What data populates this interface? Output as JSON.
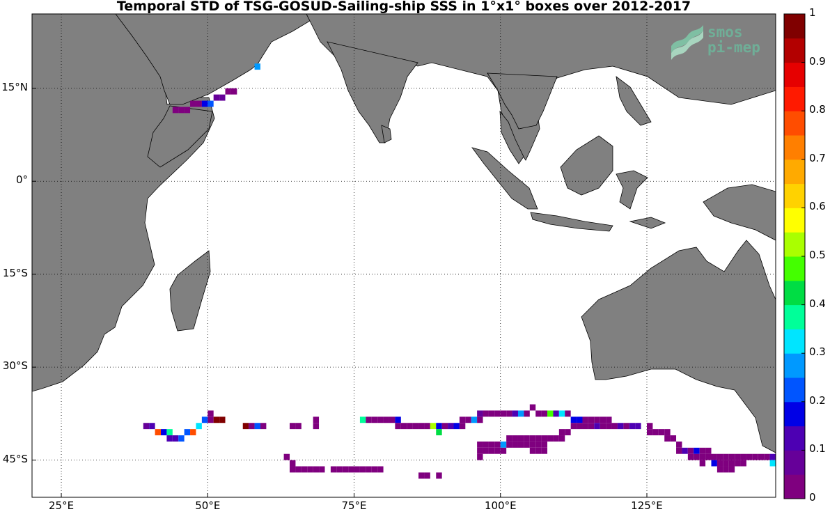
{
  "title": "Temporal STD of TSG-GOSUD-Sailing-ship SSS in 1°x1° boxes over 2012-2017",
  "logo": {
    "line1": "smos",
    "line2": "pi-mep"
  },
  "colors": {
    "land": "#808080",
    "ocean": "#ffffff",
    "grid": "#000000"
  },
  "map_extent": {
    "lon": [
      20,
      147
    ],
    "lat": [
      -51,
      27
    ]
  },
  "lat_ticks": [
    {
      "value": 15,
      "label": "15°N"
    },
    {
      "value": 0,
      "label": "0°"
    },
    {
      "value": -15,
      "label": "15°S"
    },
    {
      "value": -30,
      "label": "30°S"
    },
    {
      "value": -45,
      "label": "45°S"
    }
  ],
  "lon_ticks": [
    {
      "value": 25,
      "label": "25°E"
    },
    {
      "value": 50,
      "label": "50°E"
    },
    {
      "value": 75,
      "label": "75°E"
    },
    {
      "value": 100,
      "label": "100°E"
    },
    {
      "value": 125,
      "label": "125°E"
    }
  ],
  "colorbar": {
    "range": [
      0,
      1
    ],
    "tick_labels": [
      "0",
      "0.1",
      "0.2",
      "0.3",
      "0.4",
      "0.5",
      "0.6",
      "0.7",
      "0.8",
      "0.9",
      "1"
    ],
    "colors": [
      "#7f007f",
      "#660099",
      "#4d00b3",
      "#0000e6",
      "#0055ff",
      "#0099ff",
      "#00e5ff",
      "#00ff99",
      "#00dd44",
      "#44ff00",
      "#aaff00",
      "#ffff00",
      "#ffd200",
      "#ffaa00",
      "#ff7f00",
      "#ff4d00",
      "#ff1a00",
      "#e60000",
      "#b30000",
      "#800000"
    ]
  },
  "chart_data": {
    "type": "heatmap",
    "title": "Temporal STD of TSG-GOSUD-Sailing-ship SSS in 1°x1° boxes over 2012-2017",
    "value_range": [
      0,
      1
    ],
    "grid": "on",
    "cells": [
      {
        "lon": 44,
        "lat": 11,
        "v": 0.02
      },
      {
        "lon": 45,
        "lat": 11,
        "v": 0.02
      },
      {
        "lon": 46,
        "lat": 11,
        "v": 0.02
      },
      {
        "lon": 47,
        "lat": 12,
        "v": 0.02
      },
      {
        "lon": 48,
        "lat": 12,
        "v": 0.02
      },
      {
        "lon": 49,
        "lat": 12,
        "v": 0.15
      },
      {
        "lon": 50,
        "lat": 12,
        "v": 0.2
      },
      {
        "lon": 51,
        "lat": 13,
        "v": 0.05
      },
      {
        "lon": 52,
        "lat": 13,
        "v": 0.05
      },
      {
        "lon": 53,
        "lat": 14,
        "v": 0.04
      },
      {
        "lon": 54,
        "lat": 14,
        "v": 0.02
      },
      {
        "lon": 58,
        "lat": 18,
        "v": 0.25
      },
      {
        "lon": 50,
        "lat": -38,
        "v": 0.02
      },
      {
        "lon": 49,
        "lat": -39,
        "v": 0.2
      },
      {
        "lon": 50,
        "lat": -39,
        "v": 0.02
      },
      {
        "lon": 51,
        "lat": -39,
        "v": 0.95
      },
      {
        "lon": 52,
        "lat": -39,
        "v": 0.95
      },
      {
        "lon": 39,
        "lat": -40,
        "v": 0.05
      },
      {
        "lon": 40,
        "lat": -40,
        "v": 0.1
      },
      {
        "lon": 48,
        "lat": -40,
        "v": 0.3
      },
      {
        "lon": 41,
        "lat": -41,
        "v": 0.75
      },
      {
        "lon": 42,
        "lat": -41,
        "v": 0.15
      },
      {
        "lon": 43,
        "lat": -41,
        "v": 0.35
      },
      {
        "lon": 46,
        "lat": -41,
        "v": 0.2
      },
      {
        "lon": 47,
        "lat": -41,
        "v": 0.75
      },
      {
        "lon": 43,
        "lat": -42,
        "v": 0.1
      },
      {
        "lon": 44,
        "lat": -42,
        "v": 0.1
      },
      {
        "lon": 45,
        "lat": -42,
        "v": 0.2
      },
      {
        "lon": 56,
        "lat": -40,
        "v": 0.95
      },
      {
        "lon": 57,
        "lat": -40,
        "v": 0.02
      },
      {
        "lon": 58,
        "lat": -40,
        "v": 0.2
      },
      {
        "lon": 59,
        "lat": -40,
        "v": 0.02
      },
      {
        "lon": 64,
        "lat": -40,
        "v": 0.02
      },
      {
        "lon": 65,
        "lat": -40,
        "v": 0.02
      },
      {
        "lon": 68,
        "lat": -39,
        "v": 0.02
      },
      {
        "lon": 68,
        "lat": -40,
        "v": 0.02
      },
      {
        "lon": 76,
        "lat": -39,
        "v": 0.38
      },
      {
        "lon": 77,
        "lat": -39,
        "v": 0.02
      },
      {
        "lon": 78,
        "lat": -39,
        "v": 0.02
      },
      {
        "lon": 79,
        "lat": -39,
        "v": 0.02
      },
      {
        "lon": 80,
        "lat": -39,
        "v": 0.02
      },
      {
        "lon": 81,
        "lat": -39,
        "v": 0.02
      },
      {
        "lon": 82,
        "lat": -39,
        "v": 0.15
      },
      {
        "lon": 82,
        "lat": -40,
        "v": 0.02
      },
      {
        "lon": 83,
        "lat": -40,
        "v": 0.02
      },
      {
        "lon": 84,
        "lat": -40,
        "v": 0.02
      },
      {
        "lon": 85,
        "lat": -40,
        "v": 0.02
      },
      {
        "lon": 86,
        "lat": -40,
        "v": 0.02
      },
      {
        "lon": 87,
        "lat": -40,
        "v": 0.02
      },
      {
        "lon": 88,
        "lat": -40,
        "v": 0.5
      },
      {
        "lon": 89,
        "lat": -40,
        "v": 0.15
      },
      {
        "lon": 89,
        "lat": -41,
        "v": 0.42
      },
      {
        "lon": 90,
        "lat": -40,
        "v": 0.02
      },
      {
        "lon": 91,
        "lat": -40,
        "v": 0.1
      },
      {
        "lon": 92,
        "lat": -40,
        "v": 0.15
      },
      {
        "lon": 93,
        "lat": -40,
        "v": 0.02
      },
      {
        "lon": 93,
        "lat": -39,
        "v": 0.02
      },
      {
        "lon": 94,
        "lat": -39,
        "v": 0.02
      },
      {
        "lon": 95,
        "lat": -39,
        "v": 0.25
      },
      {
        "lon": 96,
        "lat": -39,
        "v": 0.02
      },
      {
        "lon": 96,
        "lat": -38,
        "v": 0.05
      },
      {
        "lon": 97,
        "lat": -38,
        "v": 0.02
      },
      {
        "lon": 98,
        "lat": -38,
        "v": 0.02
      },
      {
        "lon": 99,
        "lat": -38,
        "v": 0.02
      },
      {
        "lon": 100,
        "lat": -38,
        "v": 0.02
      },
      {
        "lon": 101,
        "lat": -38,
        "v": 0.02
      },
      {
        "lon": 102,
        "lat": -38,
        "v": 0.1
      },
      {
        "lon": 103,
        "lat": -38,
        "v": 0.25
      },
      {
        "lon": 104,
        "lat": -38,
        "v": 0.02
      },
      {
        "lon": 105,
        "lat": -37,
        "v": 0.02
      },
      {
        "lon": 106,
        "lat": -38,
        "v": 0.02
      },
      {
        "lon": 107,
        "lat": -38,
        "v": 0.02
      },
      {
        "lon": 108,
        "lat": -38,
        "v": 0.48
      },
      {
        "lon": 109,
        "lat": -38,
        "v": 0.1
      },
      {
        "lon": 110,
        "lat": -38,
        "v": 0.3
      },
      {
        "lon": 111,
        "lat": -38,
        "v": 0.02
      },
      {
        "lon": 112,
        "lat": -39,
        "v": 0.15
      },
      {
        "lon": 113,
        "lat": -39,
        "v": 0.15
      },
      {
        "lon": 114,
        "lat": -39,
        "v": 0.02
      },
      {
        "lon": 115,
        "lat": -39,
        "v": 0.02
      },
      {
        "lon": 116,
        "lat": -39,
        "v": 0.02
      },
      {
        "lon": 117,
        "lat": -39,
        "v": 0.02
      },
      {
        "lon": 118,
        "lat": -39,
        "v": 0.02
      },
      {
        "lon": 112,
        "lat": -40,
        "v": 0.02
      },
      {
        "lon": 113,
        "lat": -40,
        "v": 0.02
      },
      {
        "lon": 114,
        "lat": -40,
        "v": 0.02
      },
      {
        "lon": 115,
        "lat": -40,
        "v": 0.02
      },
      {
        "lon": 116,
        "lat": -40,
        "v": 0.1
      },
      {
        "lon": 117,
        "lat": -40,
        "v": 0.02
      },
      {
        "lon": 118,
        "lat": -40,
        "v": 0.02
      },
      {
        "lon": 119,
        "lat": -40,
        "v": 0.02
      },
      {
        "lon": 120,
        "lat": -40,
        "v": 0.1
      },
      {
        "lon": 121,
        "lat": -40,
        "v": 0.02
      },
      {
        "lon": 122,
        "lat": -40,
        "v": 0.1
      },
      {
        "lon": 123,
        "lat": -40,
        "v": 0.1
      },
      {
        "lon": 110,
        "lat": -41,
        "v": 0.02
      },
      {
        "lon": 111,
        "lat": -41,
        "v": 0.02
      },
      {
        "lon": 108,
        "lat": -42,
        "v": 0.02
      },
      {
        "lon": 109,
        "lat": -42,
        "v": 0.02
      },
      {
        "lon": 110,
        "lat": -42,
        "v": 0.02
      },
      {
        "lon": 125,
        "lat": -40,
        "v": 0.02
      },
      {
        "lon": 125,
        "lat": -41,
        "v": 0.02
      },
      {
        "lon": 126,
        "lat": -41,
        "v": 0.02
      },
      {
        "lon": 127,
        "lat": -41,
        "v": 0.02
      },
      {
        "lon": 128,
        "lat": -41,
        "v": 0.02
      },
      {
        "lon": 128,
        "lat": -42,
        "v": 0.02
      },
      {
        "lon": 129,
        "lat": -42,
        "v": 0.02
      },
      {
        "lon": 130,
        "lat": -43,
        "v": 0.02
      },
      {
        "lon": 130,
        "lat": -44,
        "v": 0.02
      },
      {
        "lon": 131,
        "lat": -44,
        "v": 0.1
      },
      {
        "lon": 132,
        "lat": -44,
        "v": 0.02
      },
      {
        "lon": 133,
        "lat": -44,
        "v": 0.15
      },
      {
        "lon": 134,
        "lat": -44,
        "v": 0.02
      },
      {
        "lon": 135,
        "lat": -44,
        "v": 0.02
      },
      {
        "lon": 132,
        "lat": -45,
        "v": 0.02
      },
      {
        "lon": 133,
        "lat": -45,
        "v": 0.02
      },
      {
        "lon": 134,
        "lat": -45,
        "v": 0.02
      },
      {
        "lon": 135,
        "lat": -45,
        "v": 0.02
      },
      {
        "lon": 136,
        "lat": -45,
        "v": 0.02
      },
      {
        "lon": 137,
        "lat": -45,
        "v": 0.02
      },
      {
        "lon": 138,
        "lat": -45,
        "v": 0.02
      },
      {
        "lon": 139,
        "lat": -45,
        "v": 0.02
      },
      {
        "lon": 140,
        "lat": -45,
        "v": 0.02
      },
      {
        "lon": 141,
        "lat": -45,
        "v": 0.02
      },
      {
        "lon": 142,
        "lat": -45,
        "v": 0.02
      },
      {
        "lon": 143,
        "lat": -45,
        "v": 0.02
      },
      {
        "lon": 144,
        "lat": -45,
        "v": 0.02
      },
      {
        "lon": 145,
        "lat": -45,
        "v": 0.02
      },
      {
        "lon": 146,
        "lat": -45,
        "v": 0.1
      },
      {
        "lon": 136,
        "lat": -46,
        "v": 0.15
      },
      {
        "lon": 137,
        "lat": -46,
        "v": 0.02
      },
      {
        "lon": 138,
        "lat": -46,
        "v": 0.02
      },
      {
        "lon": 139,
        "lat": -46,
        "v": 0.02
      },
      {
        "lon": 140,
        "lat": -46,
        "v": 0.02
      },
      {
        "lon": 141,
        "lat": -46,
        "v": 0.02
      },
      {
        "lon": 146,
        "lat": -46,
        "v": 0.3
      },
      {
        "lon": 134,
        "lat": -46,
        "v": 0.02
      },
      {
        "lon": 137,
        "lat": -47,
        "v": 0.02
      },
      {
        "lon": 138,
        "lat": -47,
        "v": 0.02
      },
      {
        "lon": 139,
        "lat": -47,
        "v": 0.02
      },
      {
        "lon": 96,
        "lat": -43,
        "v": 0.02
      },
      {
        "lon": 97,
        "lat": -43,
        "v": 0.02
      },
      {
        "lon": 98,
        "lat": -43,
        "v": 0.02
      },
      {
        "lon": 99,
        "lat": -43,
        "v": 0.02
      },
      {
        "lon": 100,
        "lat": -43,
        "v": 0.25
      },
      {
        "lon": 101,
        "lat": -42,
        "v": 0.02
      },
      {
        "lon": 102,
        "lat": -42,
        "v": 0.02
      },
      {
        "lon": 103,
        "lat": -42,
        "v": 0.02
      },
      {
        "lon": 104,
        "lat": -42,
        "v": 0.02
      },
      {
        "lon": 105,
        "lat": -42,
        "v": 0.02
      },
      {
        "lon": 106,
        "lat": -42,
        "v": 0.02
      },
      {
        "lon": 107,
        "lat": -42,
        "v": 0.02
      },
      {
        "lon": 96,
        "lat": -44,
        "v": 0.02
      },
      {
        "lon": 97,
        "lat": -44,
        "v": 0.02
      },
      {
        "lon": 98,
        "lat": -44,
        "v": 0.02
      },
      {
        "lon": 99,
        "lat": -44,
        "v": 0.02
      },
      {
        "lon": 100,
        "lat": -44,
        "v": 0.02
      },
      {
        "lon": 101,
        "lat": -43,
        "v": 0.02
      },
      {
        "lon": 102,
        "lat": -43,
        "v": 0.02
      },
      {
        "lon": 103,
        "lat": -43,
        "v": 0.02
      },
      {
        "lon": 104,
        "lat": -43,
        "v": 0.02
      },
      {
        "lon": 105,
        "lat": -43,
        "v": 0.02
      },
      {
        "lon": 106,
        "lat": -43,
        "v": 0.02
      },
      {
        "lon": 107,
        "lat": -43,
        "v": 0.02
      },
      {
        "lon": 105,
        "lat": -44,
        "v": 0.02
      },
      {
        "lon": 106,
        "lat": -44,
        "v": 0.02
      },
      {
        "lon": 107,
        "lat": -44,
        "v": 0.02
      },
      {
        "lon": 96,
        "lat": -45,
        "v": 0.02
      },
      {
        "lon": 63,
        "lat": -45,
        "v": 0.02
      },
      {
        "lon": 64,
        "lat": -46,
        "v": 0.02
      },
      {
        "lon": 64,
        "lat": -47,
        "v": 0.02
      },
      {
        "lon": 65,
        "lat": -47,
        "v": 0.02
      },
      {
        "lon": 66,
        "lat": -47,
        "v": 0.02
      },
      {
        "lon": 67,
        "lat": -47,
        "v": 0.02
      },
      {
        "lon": 68,
        "lat": -47,
        "v": 0.02
      },
      {
        "lon": 69,
        "lat": -47,
        "v": 0.02
      },
      {
        "lon": 71,
        "lat": -47,
        "v": 0.02
      },
      {
        "lon": 72,
        "lat": -47,
        "v": 0.02
      },
      {
        "lon": 73,
        "lat": -47,
        "v": 0.02
      },
      {
        "lon": 74,
        "lat": -47,
        "v": 0.02
      },
      {
        "lon": 75,
        "lat": -47,
        "v": 0.02
      },
      {
        "lon": 76,
        "lat": -47,
        "v": 0.02
      },
      {
        "lon": 77,
        "lat": -47,
        "v": 0.02
      },
      {
        "lon": 78,
        "lat": -47,
        "v": 0.02
      },
      {
        "lon": 79,
        "lat": -47,
        "v": 0.02
      },
      {
        "lon": 86,
        "lat": -48,
        "v": 0.02
      },
      {
        "lon": 87,
        "lat": -48,
        "v": 0.02
      },
      {
        "lon": 89,
        "lat": -48,
        "v": 0.02
      }
    ]
  }
}
